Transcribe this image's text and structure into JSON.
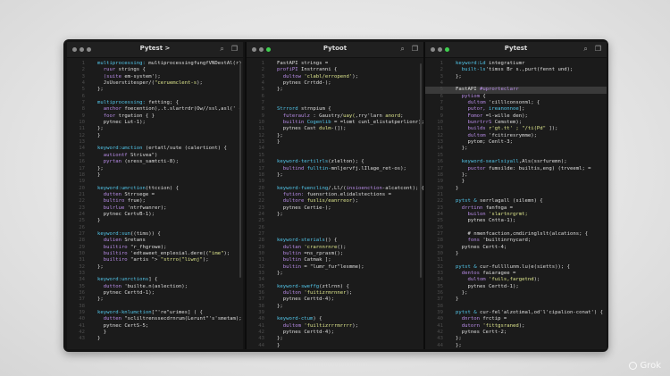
{
  "watermark": "Grok",
  "colors": {
    "keyword": "#52c6ea",
    "builtin": "#b78be6",
    "string": "#dde58c",
    "text": "#dedede",
    "accent": "#80d86a",
    "background": "#1b1b1b"
  },
  "panes": [
    {
      "title": "Pytest >",
      "icons": [
        "search-icon",
        "copy-icon"
      ],
      "lines": [
        [
          [
            "multiprocessing: ",
            "c"
          ],
          [
            "multiprocessingfungfVNDestAl(r) {",
            "w"
          ]
        ],
        [
          [
            "  ruur ",
            "p"
          ],
          [
            "strings {",
            "w"
          ]
        ],
        [
          [
            "  (suite ",
            "p"
          ],
          [
            "em-system');",
            "w"
          ]
        ],
        [
          [
            "  JsUserstitesper/(",
            "w"
          ],
          [
            "\"ceruemclent-s",
            "y"
          ],
          [
            ");",
            "w"
          ]
        ],
        [
          [
            "};",
            "w"
          ]
        ],
        [],
        [
          [
            "multiprocessing: ",
            "c"
          ],
          [
            "fetting; {",
            "w"
          ]
        ],
        [
          [
            "  anchor ",
            "p"
          ],
          [
            "foecention),.t.slartrdr(Ow//ssl,asl(' {",
            "w"
          ]
        ],
        [
          [
            "  foor ",
            "p"
          ],
          [
            "trgation { }",
            "w"
          ]
        ],
        [
          [
            "  pytnec ",
            "w"
          ],
          [
            "Lut-1);",
            "w"
          ]
        ],
        [
          [
            "};",
            "w"
          ]
        ],
        [
          [
            "}",
            "w"
          ]
        ],
        [],
        [
          [
            "keyword:umction ",
            "c"
          ],
          [
            "(ertatl/sute (calertiont) {",
            "w"
          ]
        ],
        [
          [
            "  autiontf ",
            "p"
          ],
          [
            "Strivea\")",
            "w"
          ]
        ],
        [
          [
            "  pyrtan ",
            "p"
          ],
          [
            "(sress_samtcti-8);",
            "w"
          ]
        ],
        [
          [
            "};",
            "w"
          ]
        ],
        [
          [
            "}",
            "w"
          ]
        ],
        [],
        [
          [
            "keyword:umrction",
            "c"
          ],
          [
            "(ttccion) {",
            "w"
          ]
        ],
        [
          [
            "  dutten ",
            "p"
          ],
          [
            "Strrsege =",
            "w"
          ]
        ],
        [
          [
            "  bultiro ",
            "p"
          ],
          [
            "frue);",
            "w"
          ]
        ],
        [
          [
            "  bulrlue ",
            "p"
          ],
          [
            "'ntrfwanrer);",
            "w"
          ]
        ],
        [
          [
            "  pytnec ",
            "w"
          ],
          [
            "CertvB-1);",
            "w"
          ]
        ],
        [
          [
            "}",
            "w"
          ]
        ],
        [],
        [
          [
            "keyword:sun",
            "c"
          ],
          [
            "((tims)) {",
            "w"
          ]
        ],
        [
          [
            "  dulien ",
            "p"
          ],
          [
            "Sretans",
            "w"
          ]
        ],
        [
          [
            "  builtiro ",
            "p"
          ],
          [
            "\"r_fhgrowe);",
            "w"
          ]
        ],
        [
          [
            "  builtiro ",
            "p"
          ],
          [
            "'edtaweet_enplesial.dere((",
            "w"
          ],
          [
            "\"ime\"",
            "y"
          ],
          [
            ");",
            "w"
          ]
        ],
        [
          [
            "  builtiro ",
            "p"
          ],
          [
            "\"artis \"> ",
            "w"
          ],
          [
            "\"strro(\"liwnj\"",
            "y"
          ],
          [
            ");",
            "w"
          ]
        ],
        [
          [
            "};",
            "w"
          ]
        ],
        [],
        [
          [
            "keyword:unrctions",
            "c"
          ],
          [
            "] {",
            "w"
          ]
        ],
        [
          [
            "  dutton ",
            "p"
          ],
          [
            "'builte.n(aslection);",
            "w"
          ]
        ],
        [
          [
            "  pytnec ",
            "w"
          ],
          [
            "Certtd-1);",
            "w"
          ]
        ],
        [
          [
            "};",
            "w"
          ]
        ],
        [],
        [
          [
            "keyword-knlumction",
            "c"
          ],
          [
            "[\"'re\"urimes] ( {",
            "w"
          ]
        ],
        [
          [
            "  dutten ",
            "p"
          ],
          [
            "\"scliltrenssecdrnrum(Lerunt\"'s'smetam);",
            "w"
          ]
        ],
        [
          [
            "  pytnec ",
            "w"
          ],
          [
            "CertS-5;",
            "w"
          ]
        ],
        [
          [
            "  }",
            "w"
          ]
        ],
        [
          [
            "}",
            "w"
          ]
        ]
      ]
    },
    {
      "title": "Pytoot",
      "icons": [
        "search-icon",
        "copy-icon"
      ],
      "lines": [
        [
          [
            "FastAPI ",
            "w"
          ],
          [
            "strings =",
            "w"
          ]
        ],
        [
          [
            "profiPI ",
            "p"
          ],
          [
            "Instrranni {",
            "w"
          ]
        ],
        [
          [
            "  dultow ",
            "p"
          ],
          [
            "'clabl/erropend'",
            "y"
          ],
          [
            ");",
            "w"
          ]
        ],
        [
          [
            "  pytnes ",
            "w"
          ],
          [
            "Crrtdd-);",
            "w"
          ]
        ],
        [
          [
            "};",
            "w"
          ]
        ],
        [],
        [],
        [
          [
            "Strrord ",
            "c"
          ],
          [
            "strnpium {",
            "w"
          ]
        ],
        [
          [
            "  futeraulz ",
            "p"
          ],
          [
            ": Gaustry/",
            "w"
          ],
          [
            "uay(",
            "y"
          ],
          [
            ",rry'larn ",
            "w"
          ],
          [
            "anord",
            "y"
          ],
          [
            ";",
            "w"
          ]
        ],
        [
          [
            "  builtin ",
            "p"
          ],
          [
            "Cogenlib",
            "c"
          ],
          [
            " = =lomt cunl_elistatperlionr);",
            "w"
          ]
        ],
        [
          [
            "  pytnes ",
            "w"
          ],
          [
            "Cast ",
            "w"
          ],
          [
            "dulm",
            "y"
          ],
          [
            "-(]);",
            "w"
          ]
        ],
        [
          [
            "};",
            "w"
          ]
        ],
        [
          [
            "}",
            "w"
          ]
        ],
        [],
        [],
        [
          [
            "keyword-tertilrls",
            "c"
          ],
          [
            "(zlelton); {",
            "w"
          ]
        ],
        [
          [
            "  bultind ",
            "p"
          ],
          [
            "fulltin-",
            "c"
          ],
          [
            "mnljervfj.lIlage_ret-os);",
            "w"
          ]
        ],
        [
          [
            "};",
            "w"
          ]
        ],
        [],
        [
          [
            "keyword-fuencling",
            "c"
          ],
          [
            "/,Ll/(",
            "w"
          ],
          [
            "insioenction",
            "p"
          ],
          [
            "-alcatcont); {",
            "w"
          ]
        ],
        [
          [
            "  fution: ",
            "p"
          ],
          [
            "fuensrtion.elidalstections =",
            "w"
          ]
        ],
        [
          [
            "  dultore ",
            "p"
          ],
          [
            "fuslis/eanrreor",
            "y"
          ],
          [
            ");",
            "w"
          ]
        ],
        [
          [
            "  pytnes ",
            "w"
          ],
          [
            "Certie-);",
            "w"
          ]
        ],
        [
          [
            "};",
            "w"
          ]
        ],
        [],
        [],
        [],
        [
          [
            "keyword-sterials",
            "c"
          ],
          [
            "() {",
            "w"
          ]
        ],
        [
          [
            "  dultan ",
            "p"
          ],
          [
            "'crarnnrnre",
            "y"
          ],
          [
            "();",
            "w"
          ]
        ],
        [
          [
            "  bultin ",
            "p"
          ],
          [
            "=ns_rprasm();",
            "w"
          ]
        ],
        [
          [
            "  bultin ",
            "p"
          ],
          [
            "Catmak ];",
            "w"
          ]
        ],
        [
          [
            "  bultin ",
            "p"
          ],
          [
            "= \"lumr_fur\"lesmme);",
            "w"
          ]
        ],
        [
          [
            "};",
            "w"
          ]
        ],
        [],
        [
          [
            "keyword-sweffg",
            "c"
          ],
          [
            "(ztlrnn) {",
            "w"
          ]
        ],
        [
          [
            "  dulton ",
            "p"
          ],
          [
            "'fuitizrmrnner",
            "y"
          ],
          [
            ");",
            "w"
          ]
        ],
        [
          [
            "  pytnes ",
            "w"
          ],
          [
            "Certtd-4);",
            "w"
          ]
        ],
        [
          [
            "};",
            "w"
          ]
        ],
        [],
        [
          [
            "keyword-ctum",
            "c"
          ],
          [
            ") {",
            "w"
          ]
        ],
        [
          [
            "  dultom ",
            "p"
          ],
          [
            "'fuiltizrrrmrrrr",
            "y"
          ],
          [
            ");",
            "w"
          ]
        ],
        [
          [
            "  pytnes ",
            "w"
          ],
          [
            "Certtd-4);",
            "w"
          ]
        ],
        [
          [
            "};",
            "w"
          ]
        ],
        [
          [
            "}",
            "w"
          ]
        ]
      ]
    },
    {
      "title": "Pytest",
      "icons": [
        "search-icon",
        "copy-icon"
      ],
      "lines": [
        [
          [
            "keyword:Ld ",
            "c"
          ],
          [
            "integratiumr",
            "w"
          ]
        ],
        [
          [
            "  built-ls",
            "c"
          ],
          [
            "'timss Br s.,purt(fennt und);",
            "w"
          ]
        ],
        [
          [
            "};",
            "w"
          ]
        ],
        [],
        [
          [
            "FastAPI ",
            "w"
          ],
          [
            "#uprorteclarr",
            "p"
          ]
        ],
        [
          [
            "  pytiom ",
            "p"
          ],
          [
            "{",
            "w"
          ]
        ],
        [
          [
            "    dultom ",
            "p"
          ],
          [
            "'cilllconsonml; {",
            "w"
          ]
        ],
        [
          [
            "    putor, ",
            "p"
          ],
          [
            "ireanonnoe",
            "c"
          ],
          [
            "];",
            "w"
          ]
        ],
        [
          [
            "    Fomor ",
            "p"
          ],
          [
            "=l-wille den);",
            "w"
          ]
        ],
        [
          [
            "    bunrtrrS ",
            "p"
          ],
          [
            "Cemstem);",
            "w"
          ]
        ],
        [
          [
            "    builds ",
            "p"
          ],
          [
            "r'gt.tt' ; \"/ti(Pd\" ",
            "y"
          ],
          [
            "]);",
            "w"
          ]
        ],
        [
          [
            "    dultom ",
            "p"
          ],
          [
            "'fcitiresrymme);",
            "w"
          ]
        ],
        [
          [
            "    pytom; ",
            "w"
          ],
          [
            "Cenlt-3;",
            "w"
          ]
        ],
        [
          [
            "  };",
            "w"
          ]
        ],
        [],
        [
          [
            "  keyword-searlsiyall",
            "c"
          ],
          [
            ",Als(ssrfuremn);",
            "w"
          ]
        ],
        [
          [
            "    puctor ",
            "p"
          ],
          [
            "fumsilde: builtis,eng) (trveeml; =",
            "w"
          ]
        ],
        [
          [
            "  };",
            "w"
          ]
        ],
        [
          [
            "  }",
            "w"
          ]
        ],
        [
          [
            "}",
            "w"
          ]
        ],
        [],
        [
          [
            "pytst & ",
            "c"
          ],
          [
            "serrlagall (silemn) {",
            "w"
          ]
        ],
        [
          [
            "  drrtinn ",
            "p"
          ],
          [
            "fanfnga =",
            "w"
          ]
        ],
        [
          [
            "    builon ",
            "p"
          ],
          [
            "'slartnrgrmt;",
            "y"
          ]
        ],
        [
          [
            "    pytnes ",
            "w"
          ],
          [
            "Cntta-1);",
            "w"
          ]
        ],
        [],
        [
          [
            "    # nmenfcaction,cmdiringlslt(alcations; {",
            "w"
          ]
        ],
        [
          [
            "    fons ",
            "p"
          ],
          [
            "'builtinrnycard;",
            "w"
          ]
        ],
        [
          [
            "  pytnes ",
            "w"
          ],
          [
            "Certt-4;",
            "w"
          ]
        ],
        [
          [
            "}",
            "w"
          ]
        ],
        [],
        [
          [
            "pytst & ",
            "c"
          ],
          [
            "cur-fullllunm.lu(e(sietts)); {",
            "w"
          ]
        ],
        [
          [
            "  dentos ",
            "p"
          ],
          [
            "faiaragee =",
            "w"
          ]
        ],
        [
          [
            "    dultom ",
            "p"
          ],
          [
            "'fuils,fargetnd",
            "y"
          ],
          [
            ");",
            "w"
          ]
        ],
        [
          [
            "    pytnes ",
            "w"
          ],
          [
            "Certtd-1);",
            "w"
          ]
        ],
        [
          [
            "  };",
            "w"
          ]
        ],
        [
          [
            "}",
            "w"
          ]
        ],
        [],
        [
          [
            "pytst & ",
            "c"
          ],
          [
            "cur-fel'alzotimal,od'l'cipalion-conat') {",
            "w"
          ]
        ],
        [
          [
            "  dnrton ",
            "p"
          ],
          [
            "frctip =",
            "w"
          ]
        ],
        [
          [
            "  dutorn ",
            "p"
          ],
          [
            "'fittgsraned",
            "y"
          ],
          [
            ");",
            "w"
          ]
        ],
        [
          [
            "  pytnes ",
            "w"
          ],
          [
            "Certt-2;",
            "w"
          ]
        ],
        [
          [
            "};",
            "w"
          ]
        ],
        [
          [
            "};",
            "w"
          ]
        ]
      ]
    }
  ]
}
